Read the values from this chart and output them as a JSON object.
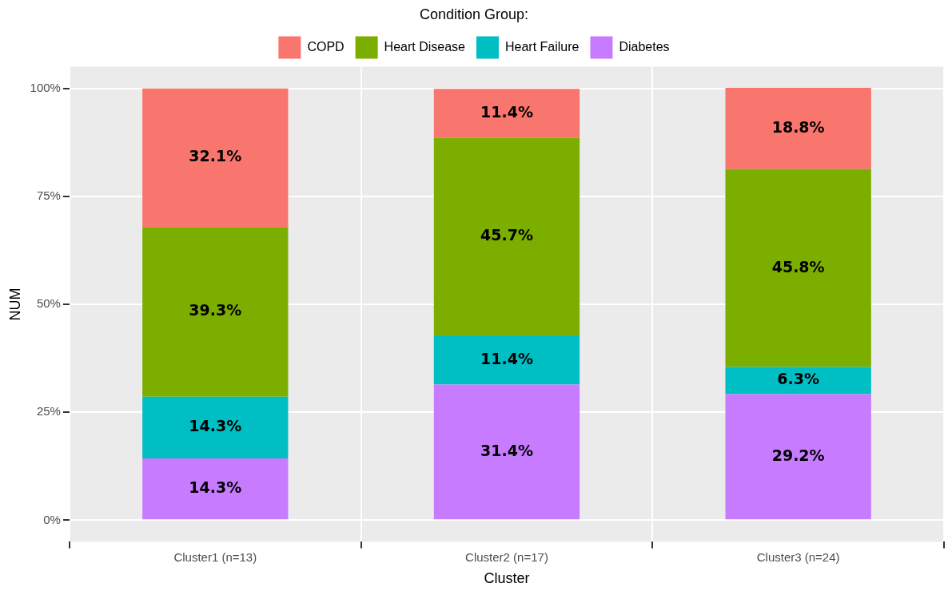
{
  "chart_data": {
    "type": "bar",
    "stacked": true,
    "xlabel": "Cluster",
    "ylabel": "NUM",
    "legend_title": "Condition Group:",
    "legend": "top",
    "grid": true,
    "categories": [
      "Cluster1 (n=13)",
      "Cluster2 (n=17)",
      "Cluster3 (n=24)"
    ],
    "ylim": [
      -5,
      105
    ],
    "yticks": [
      {
        "value": 0,
        "label": "0%"
      },
      {
        "value": 25,
        "label": "25%"
      },
      {
        "value": 50,
        "label": "50%"
      },
      {
        "value": 75,
        "label": "75%"
      },
      {
        "value": 100,
        "label": "100%"
      }
    ],
    "series": [
      {
        "name": "Diabetes",
        "color": "#c77cff",
        "values": [
          14.3,
          31.4,
          29.2
        ],
        "value_labels": [
          "14.3%",
          "31.4%",
          "29.2%"
        ]
      },
      {
        "name": "Heart Failure",
        "color": "#00bfc4",
        "values": [
          14.3,
          11.4,
          6.3
        ],
        "value_labels": [
          "14.3%",
          "11.4%",
          "6.3%"
        ]
      },
      {
        "name": "Heart Disease",
        "color": "#7cae00",
        "values": [
          39.3,
          45.7,
          45.8
        ],
        "value_labels": [
          "39.3%",
          "45.7%",
          "45.8%"
        ]
      },
      {
        "name": "COPD",
        "color": "#f8766d",
        "values": [
          32.1,
          11.4,
          18.8
        ],
        "value_labels": [
          "32.1%",
          "11.4%",
          "18.8%"
        ]
      }
    ]
  }
}
